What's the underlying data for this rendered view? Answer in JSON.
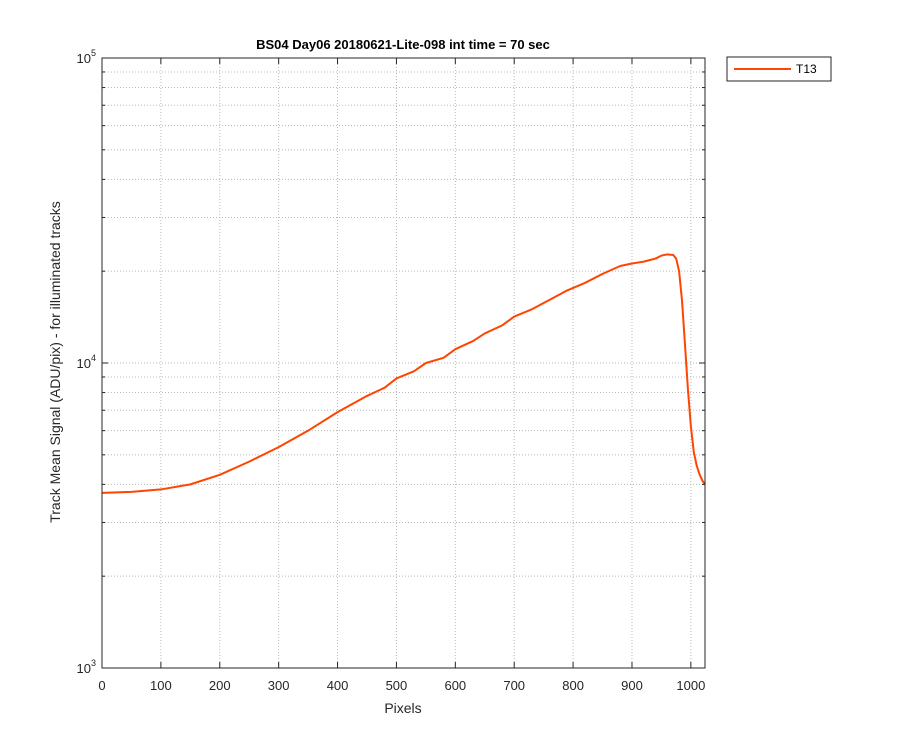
{
  "chart_data": {
    "type": "line",
    "title": "BS04 Day06 20180621-Lite-098 int time = 70 sec",
    "xlabel": "Pixels",
    "ylabel": "Track Mean Signal (ADU/pix) - for illuminated tracks",
    "xlim": [
      0,
      1024
    ],
    "ylim": [
      1000,
      100000
    ],
    "yscale": "log",
    "grid": "major-and-minor, dotted",
    "legend_position": "outside top-right",
    "x_ticks": [
      0,
      100,
      200,
      300,
      400,
      500,
      600,
      700,
      800,
      900,
      1000
    ],
    "y_ticks": [
      {
        "base": "10",
        "exp": "3",
        "value": 1000
      },
      {
        "base": "10",
        "exp": "4",
        "value": 10000
      },
      {
        "base": "10",
        "exp": "5",
        "value": 100000
      }
    ],
    "series": [
      {
        "name": "T13",
        "color": "#FF4500",
        "x": [
          0,
          50,
          100,
          150,
          200,
          250,
          300,
          350,
          400,
          450,
          480,
          500,
          530,
          550,
          580,
          600,
          630,
          650,
          680,
          700,
          730,
          760,
          790,
          820,
          850,
          880,
          900,
          920,
          940,
          950,
          960,
          970,
          975,
          980,
          985,
          990,
          995,
          1000,
          1005,
          1010,
          1015,
          1020,
          1024
        ],
        "values": [
          3750,
          3780,
          3850,
          4000,
          4300,
          4750,
          5300,
          6000,
          6900,
          7800,
          8300,
          8900,
          9400,
          10000,
          10400,
          11100,
          11800,
          12500,
          13300,
          14200,
          15000,
          16100,
          17300,
          18300,
          19600,
          20800,
          21200,
          21500,
          22000,
          22500,
          22700,
          22600,
          22000,
          20000,
          16000,
          11500,
          8200,
          6200,
          5100,
          4600,
          4300,
          4100,
          4000
        ]
      }
    ]
  },
  "colors": {
    "line": "#FF4500",
    "axes": "#262626",
    "grid": "#b8b8b8",
    "background": "#ffffff"
  }
}
